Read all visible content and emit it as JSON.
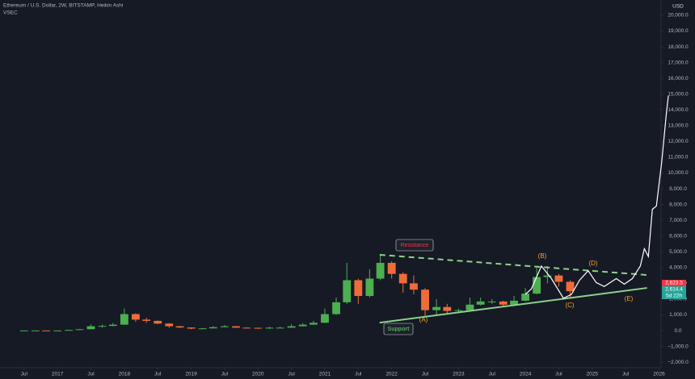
{
  "chart_data": {
    "type": "candlestick",
    "title": "Ethereum / U.S. Dollar, 2W, BITSTAMP, Heikin Ashi",
    "subtitle": "VSEC",
    "y_unit": "USD",
    "up_color": "#4caf50",
    "down_color": "#ef6c3a",
    "projection_color": "#ffffff",
    "trendline_color": "#8fd18a",
    "grid": false,
    "x": [
      2016.5,
      2016.67,
      2016.83,
      2017.0,
      2017.17,
      2017.33,
      2017.5,
      2017.67,
      2017.83,
      2018.0,
      2018.17,
      2018.33,
      2018.5,
      2018.67,
      2018.83,
      2019.0,
      2019.17,
      2019.33,
      2019.5,
      2019.67,
      2019.83,
      2020.0,
      2020.17,
      2020.33,
      2020.5,
      2020.67,
      2020.83,
      2021.0,
      2021.17,
      2021.33,
      2021.5,
      2021.67,
      2021.83,
      2022.0,
      2022.17,
      2022.33,
      2022.5,
      2022.67,
      2022.83,
      2023.0,
      2023.17,
      2023.33,
      2023.5,
      2023.67,
      2023.83,
      2024.0,
      2024.17,
      2024.33,
      2024.5,
      2024.67
    ],
    "open": [
      11,
      12,
      12,
      9,
      10,
      45,
      90,
      280,
      300,
      380,
      1050,
      700,
      620,
      450,
      280,
      200,
      130,
      145,
      220,
      280,
      190,
      180,
      150,
      190,
      190,
      280,
      380,
      500,
      1050,
      1800,
      3200,
      2200,
      3300,
      4300,
      3600,
      3000,
      2600,
      1300,
      1500,
      1250,
      1300,
      1650,
      1850,
      1850,
      1650,
      1900,
      2350,
      3400,
      3500,
      3100
    ],
    "close": [
      12,
      12,
      9,
      10,
      45,
      90,
      280,
      300,
      380,
      1050,
      700,
      620,
      450,
      280,
      200,
      130,
      145,
      220,
      280,
      190,
      180,
      150,
      190,
      190,
      280,
      380,
      500,
      1050,
      1800,
      3200,
      2200,
      3300,
      4300,
      3600,
      3000,
      2600,
      1300,
      1500,
      1250,
      1300,
      1650,
      1850,
      1850,
      1650,
      1900,
      2350,
      3400,
      3500,
      3100,
      2500
    ],
    "high": [
      14,
      14,
      13,
      12,
      55,
      110,
      400,
      390,
      480,
      1400,
      1100,
      820,
      650,
      480,
      300,
      210,
      170,
      280,
      360,
      300,
      220,
      200,
      240,
      250,
      400,
      480,
      620,
      1400,
      2100,
      4300,
      3300,
      3900,
      4800,
      4400,
      3700,
      3500,
      2700,
      2000,
      1700,
      1400,
      2100,
      2100,
      2000,
      1900,
      2200,
      2700,
      4000,
      4100,
      3600,
      3200
    ],
    "low": [
      10,
      10,
      8,
      8,
      9,
      40,
      85,
      200,
      280,
      360,
      560,
      500,
      400,
      180,
      160,
      85,
      110,
      140,
      210,
      170,
      150,
      110,
      100,
      170,
      180,
      260,
      370,
      480,
      1000,
      1700,
      1700,
      2100,
      3200,
      3300,
      2400,
      2300,
      900,
      1000,
      1100,
      1100,
      1250,
      1600,
      1700,
      1550,
      1600,
      1850,
      2300,
      3000,
      2800,
      2100
    ],
    "projection": {
      "x": [
        2024.0,
        2024.09,
        2024.24,
        2024.39,
        2024.57,
        2024.69,
        2024.81,
        2024.94,
        2025.06,
        2025.18,
        2025.36,
        2025.48,
        2025.6,
        2025.72,
        2025.78,
        2025.84,
        2025.9,
        2025.96,
        2026.04,
        2026.11,
        2026.14
      ],
      "values": [
        2300,
        2650,
        4100,
        3300,
        2050,
        2300,
        3200,
        3800,
        3050,
        2800,
        3300,
        2950,
        3300,
        4100,
        5200,
        4700,
        7700,
        7900,
        10700,
        13800,
        14900
      ]
    },
    "resistance": {
      "x": [
        2021.82,
        2025.82
      ],
      "values": [
        4810,
        3530
      ]
    },
    "support": {
      "x": [
        2021.82,
        2025.82
      ],
      "values": [
        510,
        2710
      ]
    },
    "annotations": [
      "Resistance",
      "Support",
      "(A)",
      "(B)",
      "(C)",
      "(D)",
      "(E)"
    ],
    "price_labels": [
      {
        "value": 2623.5,
        "label": "2,623.5"
      },
      {
        "value": 2614.4,
        "label": "2,614.4"
      }
    ],
    "countdown": "5d 22h",
    "xlim": [
      2016.14,
      2026.03
    ],
    "xticks": [
      {
        "value": 2016.5,
        "label": "Jul"
      },
      2017,
      {
        "value": 2017.5,
        "label": "Jul"
      },
      2018,
      {
        "value": 2018.5,
        "label": "Jul"
      },
      2019,
      {
        "value": 2019.5,
        "label": "Jul"
      },
      2020,
      {
        "value": 2020.5,
        "label": "Jul"
      },
      2021,
      {
        "value": 2021.5,
        "label": "Jul"
      },
      2022,
      {
        "value": 2022.5,
        "label": "Jul"
      },
      2023,
      {
        "value": 2023.5,
        "label": "Jul"
      },
      2024,
      {
        "value": 2024.5,
        "label": "Jul"
      },
      2025,
      {
        "value": 2025.5,
        "label": "Jul"
      },
      2026
    ],
    "ylim": [
      -2350,
      20970
    ],
    "yticks": [
      {
        "value": -2000,
        "label": "−2,000.0"
      },
      {
        "value": -1000,
        "label": "−1,000.0"
      },
      {
        "value": 0,
        "label": "0.0"
      },
      {
        "value": 1000,
        "label": "1,000.0"
      },
      {
        "value": 2000,
        "label": "2,000.0"
      },
      {
        "value": 3000,
        "label": "3,000.0"
      },
      {
        "value": 4000,
        "label": "4,000.0"
      },
      {
        "value": 5000,
        "label": "5,000.0"
      },
      {
        "value": 6000,
        "label": "6,000.0"
      },
      {
        "value": 7000,
        "label": "7,000.0"
      },
      {
        "value": 8000,
        "label": "8,000.0"
      },
      {
        "value": 9000,
        "label": "9,000.0"
      },
      {
        "value": 10000,
        "label": "10,000.0"
      },
      {
        "value": 11000,
        "label": "11,000.0"
      },
      {
        "value": 12000,
        "label": "12,000.0"
      },
      {
        "value": 13000,
        "label": "13,000.0"
      },
      {
        "value": 14000,
        "label": "14,000.0"
      },
      {
        "value": 15000,
        "label": "15,000.0"
      },
      {
        "value": 16000,
        "label": "16,000.0"
      },
      {
        "value": 17000,
        "label": "17,000.0"
      },
      {
        "value": 18000,
        "label": "18,000.0"
      },
      {
        "value": 19000,
        "label": "19,000.0"
      },
      {
        "value": 20000,
        "label": "20,000.0"
      }
    ]
  }
}
